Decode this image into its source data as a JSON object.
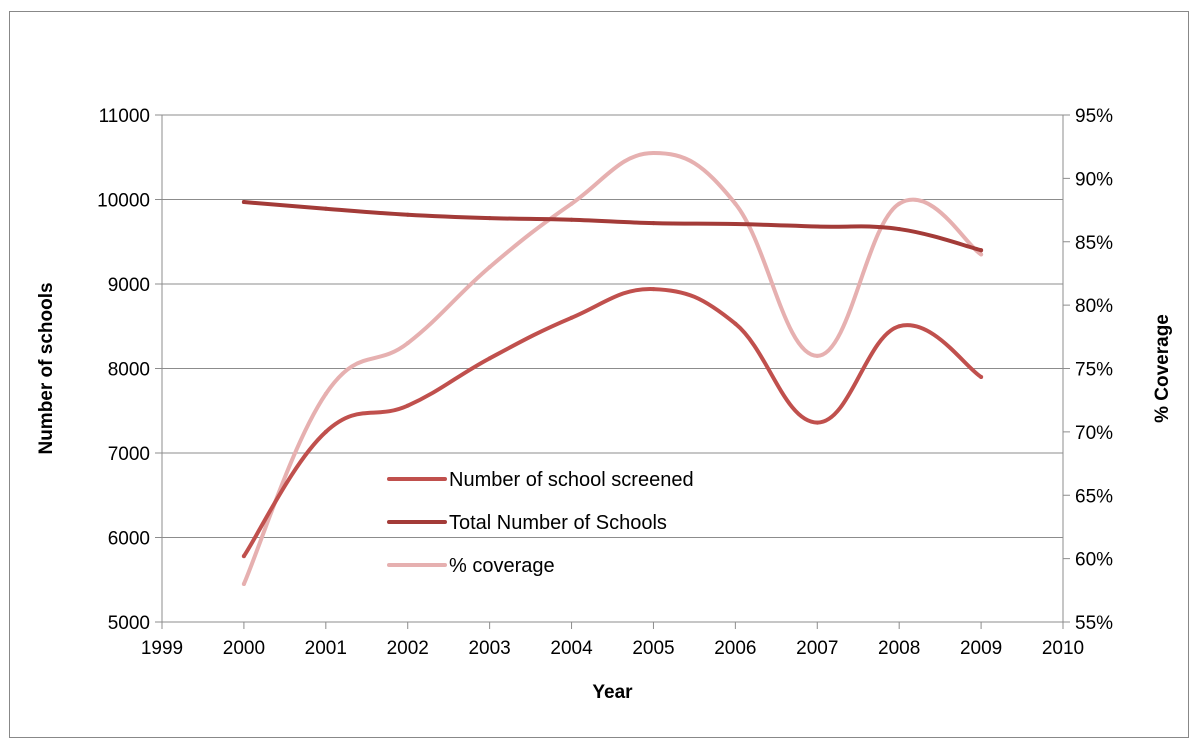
{
  "chart_data": {
    "type": "line",
    "title": "",
    "xlabel": "Year",
    "ylabel": "Number of schools",
    "y2label": "% Coverage",
    "x": [
      2000,
      2001,
      2002,
      2003,
      2004,
      2005,
      2006,
      2007,
      2008,
      2009
    ],
    "xlim": [
      1999,
      2010
    ],
    "x_ticks": [
      "1999",
      "2000",
      "2001",
      "2002",
      "2003",
      "2004",
      "2005",
      "2006",
      "2007",
      "2008",
      "2009",
      "2010"
    ],
    "ylim": [
      5000,
      11000
    ],
    "y_ticks": [
      "5000",
      "6000",
      "7000",
      "8000",
      "9000",
      "10000",
      "11000"
    ],
    "y2lim": [
      0.55,
      0.95
    ],
    "y2_ticks": [
      "55%",
      "60%",
      "65%",
      "70%",
      "75%",
      "80%",
      "85%",
      "90%",
      "95%"
    ],
    "grid": "horizontal",
    "smooth": true,
    "legend_position": "inside-bottom-center",
    "series": [
      {
        "name": "Number of school screened",
        "axis": "left",
        "color": "#c0504d",
        "values": [
          5780,
          7250,
          7560,
          8120,
          8600,
          8940,
          8530,
          7360,
          8500,
          7900
        ]
      },
      {
        "name": "Total Number of Schools",
        "axis": "left",
        "color": "#a33b38",
        "values": [
          9970,
          9890,
          9820,
          9780,
          9760,
          9720,
          9710,
          9680,
          9650,
          9400
        ]
      },
      {
        "name": "% coverage",
        "axis": "right",
        "color": "#e6b0b0",
        "values": [
          0.58,
          0.73,
          0.77,
          0.83,
          0.88,
          0.92,
          0.88,
          0.76,
          0.88,
          0.84
        ]
      }
    ]
  }
}
